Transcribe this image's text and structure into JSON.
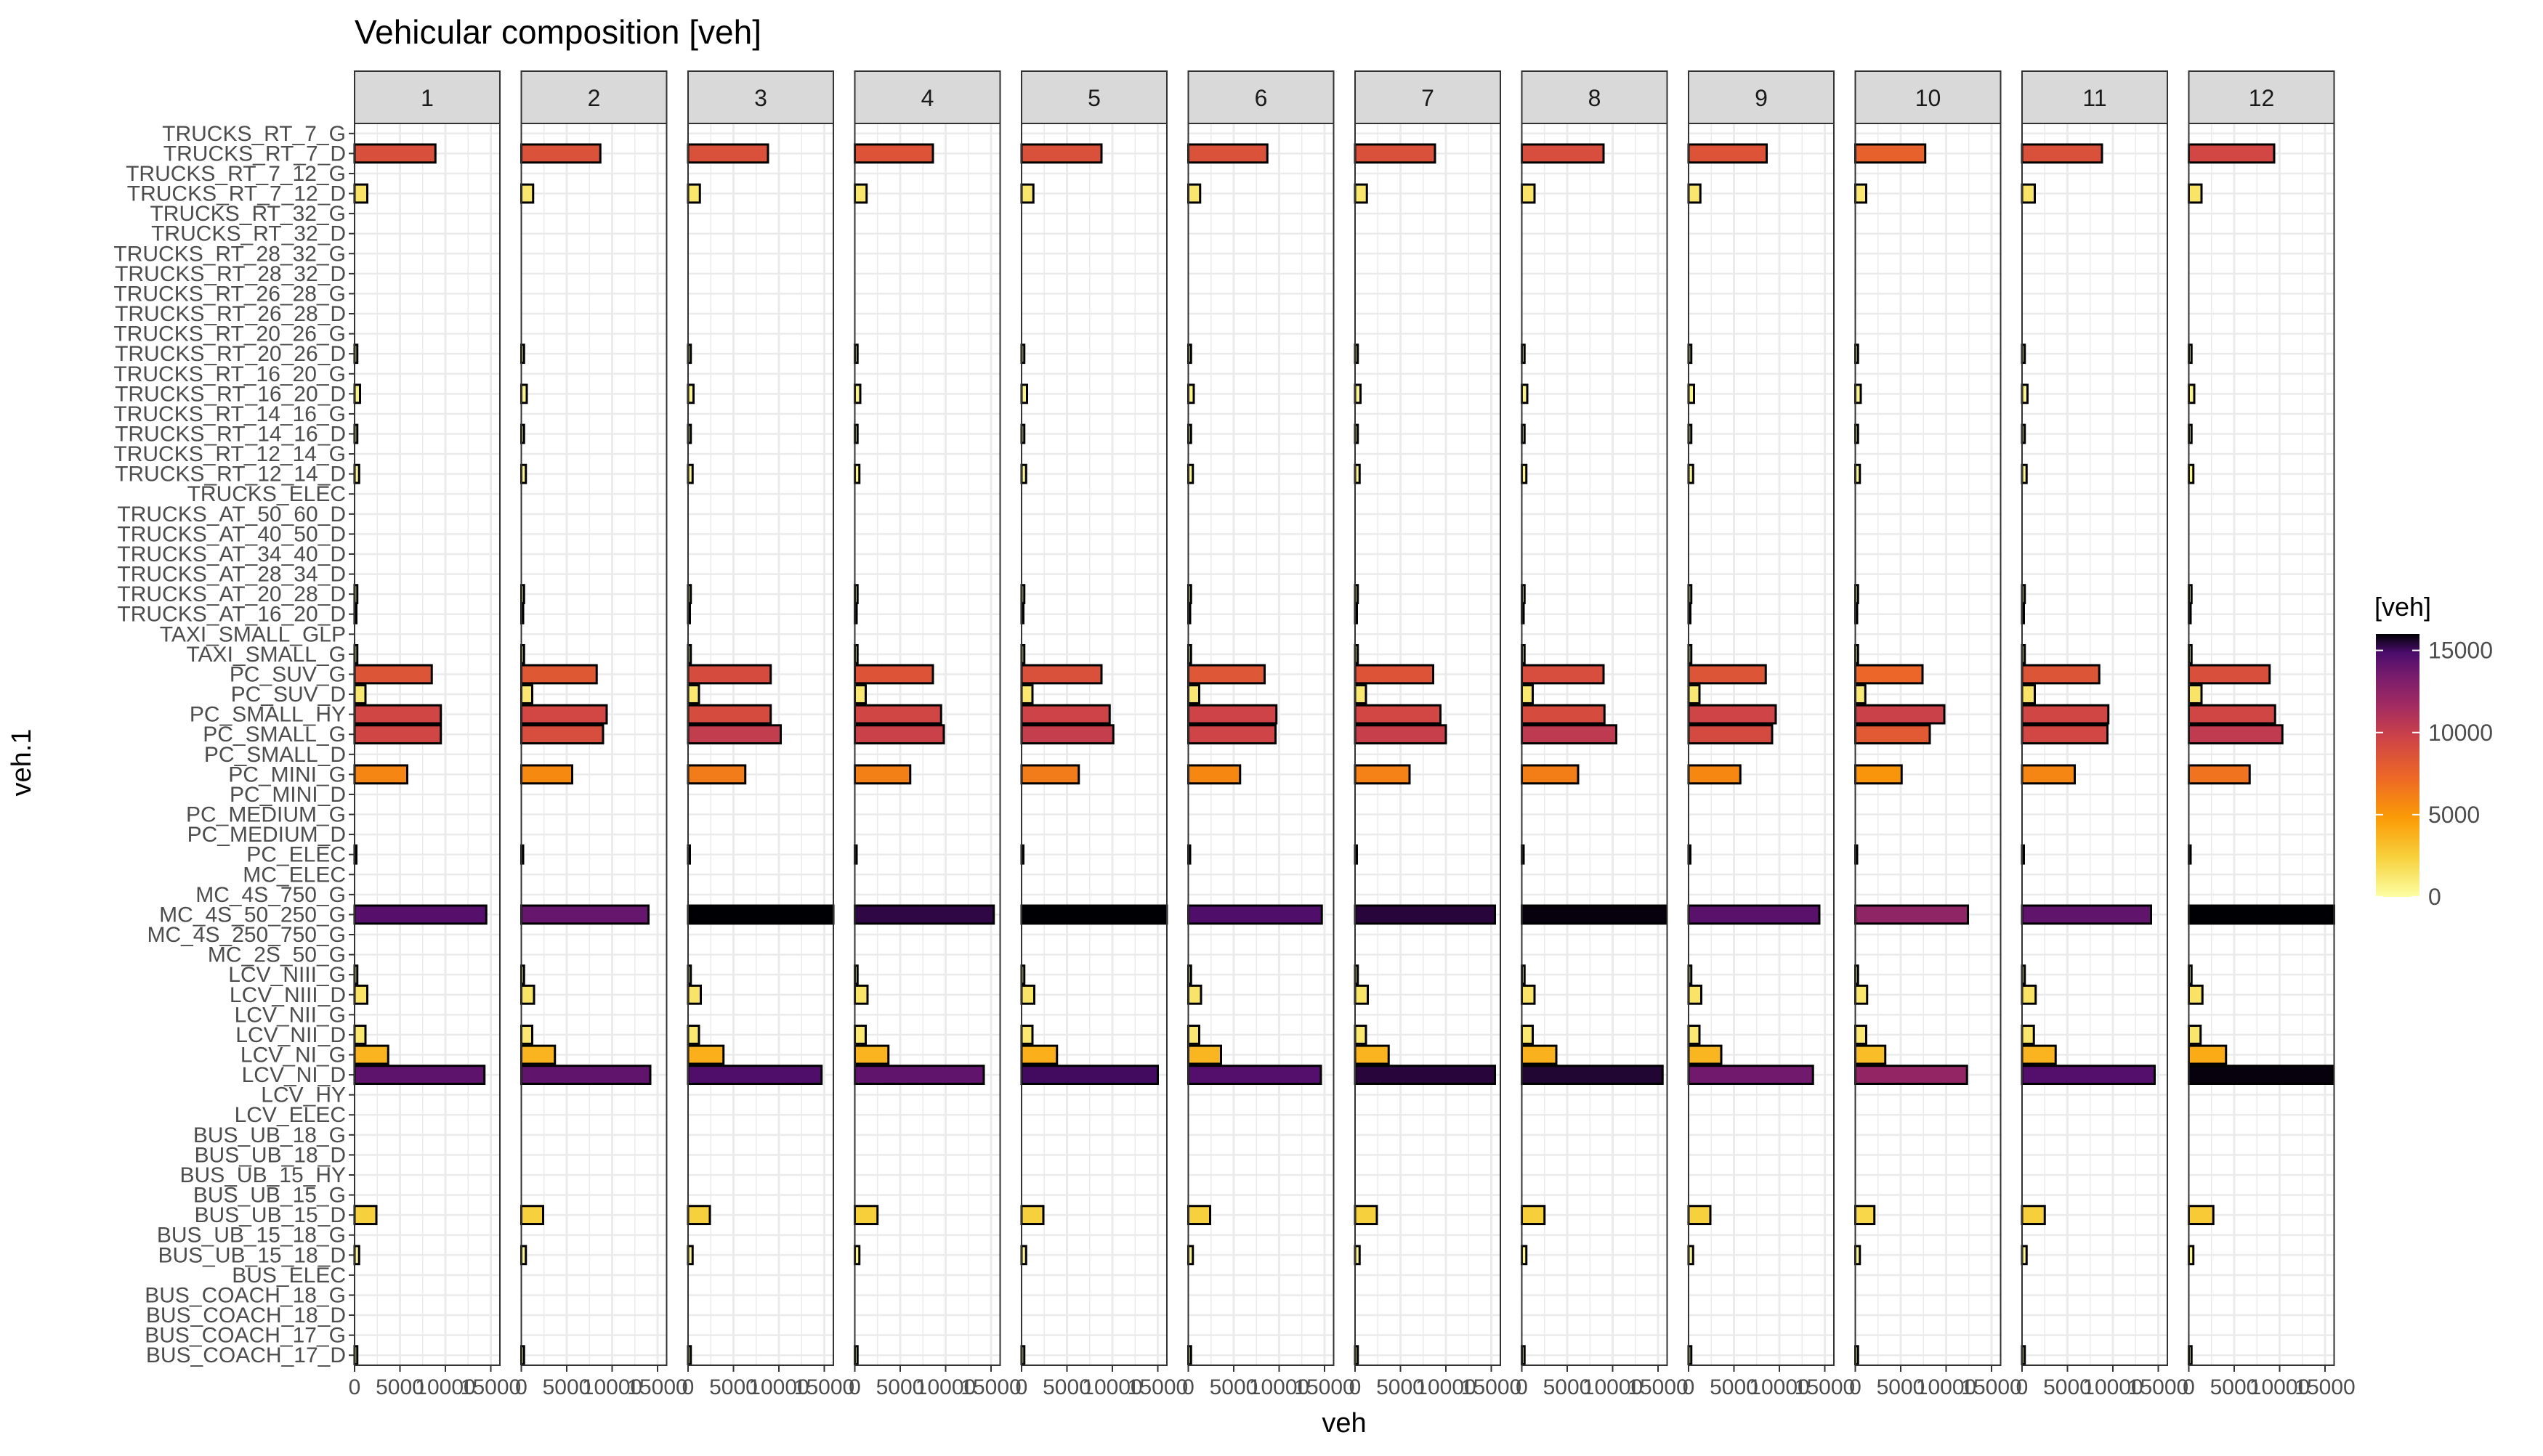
{
  "chart_data": {
    "type": "bar",
    "orientation": "horizontal",
    "title": "Vehicular composition [veh]",
    "xlabel": "veh",
    "ylabel": "veh.1",
    "legend": {
      "title": "[veh]",
      "placement": "right",
      "ticks": [
        "15000",
        "10000",
        "5000",
        "0"
      ]
    },
    "color_scale": {
      "name": "inferno",
      "domain": [
        0,
        16000
      ],
      "low": "#fcffa4",
      "high": "#000004"
    },
    "xlim": [
      0,
      16000
    ],
    "xticks": [
      0,
      5000,
      10000,
      15000
    ],
    "xtick_labels": [
      "0",
      "5000",
      "10000",
      "15000"
    ],
    "grid": true,
    "facets": [
      "1",
      "2",
      "3",
      "4",
      "5",
      "6",
      "7",
      "8",
      "9",
      "10",
      "11",
      "12"
    ],
    "categories": [
      "TRUCKS_RT_7_G",
      "TRUCKS_RT_7_D",
      "TRUCKS_RT_7_12_G",
      "TRUCKS_RT_7_12_D",
      "TRUCKS_RT_32_G",
      "TRUCKS_RT_32_D",
      "TRUCKS_RT_28_32_G",
      "TRUCKS_RT_28_32_D",
      "TRUCKS_RT_26_28_G",
      "TRUCKS_RT_26_28_D",
      "TRUCKS_RT_20_26_G",
      "TRUCKS_RT_20_26_D",
      "TRUCKS_RT_16_20_G",
      "TRUCKS_RT_16_20_D",
      "TRUCKS_RT_14_16_G",
      "TRUCKS_RT_14_16_D",
      "TRUCKS_RT_12_14_G",
      "TRUCKS_RT_12_14_D",
      "TRUCKS_ELEC",
      "TRUCKS_AT_50_60_D",
      "TRUCKS_AT_40_50_D",
      "TRUCKS_AT_34_40_D",
      "TRUCKS_AT_28_34_D",
      "TRUCKS_AT_20_28_D",
      "TRUCKS_AT_16_20_D",
      "TAXI_SMALL_GLP",
      "TAXI_SMALL_G",
      "PC_SUV_G",
      "PC_SUV_D",
      "PC_SMALL_HY",
      "PC_SMALL_G",
      "PC_SMALL_D",
      "PC_MINI_G",
      "PC_MINI_D",
      "PC_MEDIUM_G",
      "PC_MEDIUM_D",
      "PC_ELEC",
      "MC_ELEC",
      "MC_4S_750_G",
      "MC_4S_50_250_G",
      "MC_4S_250_750_G",
      "MC_2S_50_G",
      "LCV_NIII_G",
      "LCV_NIII_D",
      "LCV_NII_G",
      "LCV_NII_D",
      "LCV_NI_G",
      "LCV_NI_D",
      "LCV_HY",
      "LCV_ELEC",
      "BUS_UB_18_G",
      "BUS_UB_18_D",
      "BUS_UB_15_HY",
      "BUS_UB_15_G",
      "BUS_UB_15_D",
      "BUS_UB_15_18_G",
      "BUS_UB_15_18_D",
      "BUS_ELEC",
      "BUS_COACH_18_G",
      "BUS_COACH_18_D",
      "BUS_COACH_17_G",
      "BUS_COACH_17_D"
    ],
    "values": [
      [
        0,
        8900,
        0,
        1400,
        0,
        0,
        0,
        0,
        0,
        0,
        0,
        300,
        0,
        600,
        0,
        300,
        0,
        500,
        0,
        0,
        0,
        0,
        0,
        300,
        200,
        0,
        300,
        8500,
        1200,
        9500,
        9500,
        0,
        5800,
        0,
        0,
        0,
        200,
        0,
        0,
        14500,
        0,
        0,
        300,
        1400,
        0,
        1200,
        3700,
        14300,
        0,
        0,
        0,
        0,
        0,
        0,
        2400,
        0,
        500,
        0,
        0,
        0,
        0,
        300
      ],
      [
        0,
        8700,
        0,
        1300,
        0,
        0,
        0,
        0,
        0,
        0,
        0,
        300,
        0,
        600,
        0,
        300,
        0,
        500,
        0,
        0,
        0,
        0,
        0,
        300,
        200,
        0,
        300,
        8300,
        1200,
        9400,
        9000,
        0,
        5600,
        0,
        0,
        0,
        200,
        0,
        0,
        14000,
        0,
        0,
        300,
        1400,
        0,
        1200,
        3700,
        14200,
        0,
        0,
        0,
        0,
        0,
        0,
        2400,
        0,
        500,
        0,
        0,
        0,
        0,
        300
      ],
      [
        0,
        8800,
        0,
        1300,
        0,
        0,
        0,
        0,
        0,
        0,
        0,
        300,
        0,
        600,
        0,
        300,
        0,
        500,
        0,
        0,
        0,
        0,
        0,
        300,
        200,
        0,
        300,
        9100,
        1200,
        9100,
        10200,
        0,
        6300,
        0,
        0,
        0,
        200,
        0,
        0,
        16000,
        0,
        0,
        300,
        1400,
        0,
        1200,
        3900,
        14700,
        0,
        0,
        0,
        0,
        0,
        0,
        2400,
        0,
        500,
        0,
        0,
        0,
        0,
        300
      ],
      [
        0,
        8600,
        0,
        1300,
        0,
        0,
        0,
        0,
        0,
        0,
        0,
        300,
        0,
        600,
        0,
        300,
        0,
        500,
        0,
        0,
        0,
        0,
        0,
        300,
        200,
        0,
        300,
        8600,
        1200,
        9500,
        9800,
        0,
        6100,
        0,
        0,
        0,
        200,
        0,
        0,
        15300,
        0,
        0,
        300,
        1400,
        0,
        1200,
        3700,
        14200,
        0,
        0,
        0,
        0,
        0,
        0,
        2500,
        0,
        500,
        0,
        0,
        0,
        0,
        300
      ],
      [
        0,
        8800,
        0,
        1300,
        0,
        0,
        0,
        0,
        0,
        0,
        0,
        300,
        0,
        600,
        0,
        300,
        0,
        500,
        0,
        0,
        0,
        0,
        0,
        300,
        200,
        0,
        300,
        8800,
        1200,
        9700,
        10100,
        0,
        6300,
        0,
        0,
        0,
        200,
        0,
        0,
        16000,
        0,
        0,
        300,
        1400,
        0,
        1200,
        3900,
        15000,
        0,
        0,
        0,
        0,
        0,
        0,
        2400,
        0,
        500,
        0,
        0,
        0,
        0,
        300
      ],
      [
        0,
        8700,
        0,
        1300,
        0,
        0,
        0,
        0,
        0,
        0,
        0,
        300,
        0,
        600,
        0,
        300,
        0,
        500,
        0,
        0,
        0,
        0,
        0,
        300,
        200,
        0,
        300,
        8400,
        1200,
        9700,
        9600,
        0,
        5700,
        0,
        0,
        0,
        200,
        0,
        0,
        14700,
        0,
        0,
        300,
        1400,
        0,
        1200,
        3600,
        14600,
        0,
        0,
        0,
        0,
        0,
        0,
        2400,
        0,
        500,
        0,
        0,
        0,
        0,
        300
      ],
      [
        0,
        8800,
        0,
        1300,
        0,
        0,
        0,
        0,
        0,
        0,
        0,
        300,
        0,
        600,
        0,
        300,
        0,
        500,
        0,
        0,
        0,
        0,
        0,
        300,
        200,
        0,
        300,
        8600,
        1200,
        9400,
        10000,
        0,
        6000,
        0,
        0,
        0,
        200,
        0,
        0,
        15400,
        0,
        0,
        300,
        1400,
        0,
        1200,
        3700,
        15400,
        0,
        0,
        0,
        0,
        0,
        0,
        2400,
        0,
        500,
        0,
        0,
        0,
        0,
        300
      ],
      [
        0,
        9000,
        0,
        1400,
        0,
        0,
        0,
        0,
        0,
        0,
        0,
        300,
        0,
        600,
        0,
        300,
        0,
        500,
        0,
        0,
        0,
        0,
        0,
        300,
        200,
        0,
        300,
        9000,
        1200,
        9100,
        10400,
        0,
        6200,
        0,
        0,
        0,
        200,
        0,
        0,
        15900,
        0,
        0,
        300,
        1400,
        0,
        1200,
        3800,
        15500,
        0,
        0,
        0,
        0,
        0,
        0,
        2500,
        0,
        500,
        0,
        0,
        0,
        0,
        300
      ],
      [
        0,
        8600,
        0,
        1300,
        0,
        0,
        0,
        0,
        0,
        0,
        0,
        300,
        0,
        600,
        0,
        300,
        0,
        500,
        0,
        0,
        0,
        0,
        0,
        300,
        200,
        0,
        300,
        8500,
        1200,
        9600,
        9200,
        0,
        5700,
        0,
        0,
        0,
        200,
        0,
        0,
        14400,
        0,
        0,
        300,
        1400,
        0,
        1200,
        3600,
        13700,
        0,
        0,
        0,
        0,
        0,
        0,
        2400,
        0,
        500,
        0,
        0,
        0,
        0,
        300
      ],
      [
        0,
        7700,
        0,
        1200,
        0,
        0,
        0,
        0,
        0,
        0,
        0,
        300,
        0,
        600,
        0,
        300,
        0,
        500,
        0,
        0,
        0,
        0,
        0,
        300,
        200,
        0,
        300,
        7400,
        1100,
        9800,
        8200,
        0,
        5100,
        0,
        0,
        0,
        200,
        0,
        0,
        12400,
        0,
        0,
        300,
        1300,
        0,
        1200,
        3300,
        12300,
        0,
        0,
        0,
        0,
        0,
        0,
        2100,
        0,
        500,
        0,
        0,
        0,
        0,
        300
      ],
      [
        0,
        8800,
        0,
        1400,
        0,
        0,
        0,
        0,
        0,
        0,
        0,
        300,
        0,
        600,
        0,
        300,
        0,
        500,
        0,
        0,
        0,
        0,
        0,
        300,
        200,
        0,
        300,
        8500,
        1400,
        9500,
        9400,
        0,
        5800,
        0,
        0,
        0,
        200,
        0,
        0,
        14200,
        0,
        0,
        300,
        1500,
        0,
        1300,
        3700,
        14600,
        0,
        0,
        0,
        0,
        0,
        0,
        2500,
        0,
        500,
        0,
        0,
        0,
        0,
        300
      ],
      [
        0,
        9400,
        0,
        1400,
        0,
        0,
        0,
        0,
        0,
        0,
        0,
        300,
        0,
        600,
        0,
        300,
        0,
        500,
        0,
        0,
        0,
        0,
        0,
        300,
        200,
        0,
        300,
        8900,
        1400,
        9500,
        10300,
        0,
        6700,
        0,
        0,
        0,
        200,
        0,
        0,
        16000,
        0,
        0,
        300,
        1500,
        0,
        1300,
        4100,
        15900,
        0,
        0,
        0,
        0,
        0,
        0,
        2700,
        0,
        500,
        0,
        0,
        0,
        0,
        300
      ]
    ]
  }
}
